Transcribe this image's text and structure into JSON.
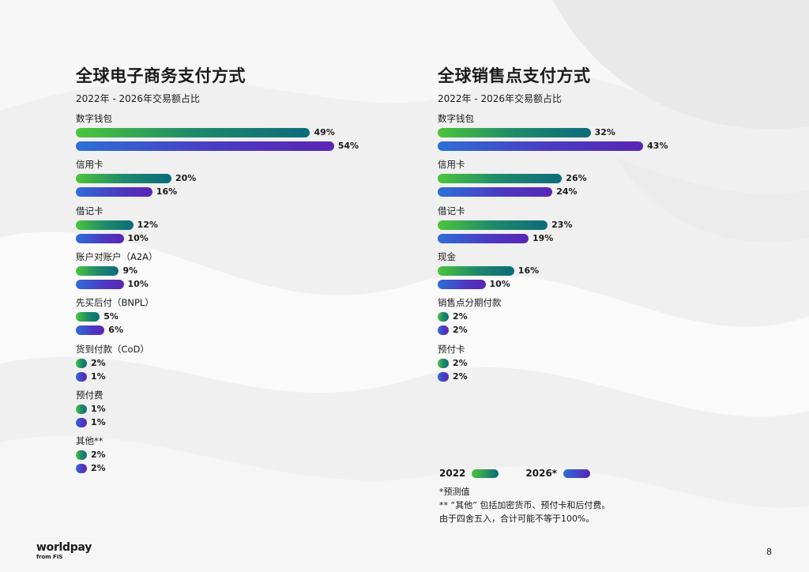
{
  "colors": {
    "bar_2022_start": "#4cc43c",
    "bar_2022_end": "#0c6b7b",
    "bar_2026_start": "#2d6fd6",
    "bar_2026_end": "#5a25b4"
  },
  "chart_data": [
    {
      "type": "bar",
      "orientation": "horizontal",
      "title": "全球电子商务支付方式",
      "subtitle": "2022年 - 2026年交易额占比",
      "categories": [
        "数字钱包",
        "信用卡",
        "借记卡",
        "账户对账户（A2A）",
        "先买后付（BNPL）",
        "货到付款（CoD）",
        "预付费",
        "其他**"
      ],
      "series": [
        {
          "name": "2022",
          "values": [
            49,
            20,
            12,
            9,
            5,
            2,
            1,
            2
          ],
          "labels": [
            "49%",
            "20%",
            "12%",
            "9%",
            "5%",
            "2%",
            "1%",
            "2%"
          ]
        },
        {
          "name": "2026*",
          "values": [
            54,
            16,
            10,
            10,
            6,
            1,
            1,
            2
          ],
          "labels": [
            "54%",
            "16%",
            "10%",
            "10%",
            "6%",
            "1%",
            "1%",
            "2%"
          ]
        }
      ]
    },
    {
      "type": "bar",
      "orientation": "horizontal",
      "title": "全球销售点支付方式",
      "subtitle": "2022年 - 2026年交易额占比",
      "categories": [
        "数字钱包",
        "信用卡",
        "借记卡",
        "现金",
        "销售点分期付款",
        "预付卡"
      ],
      "series": [
        {
          "name": "2022",
          "values": [
            32,
            26,
            23,
            16,
            2,
            2
          ],
          "labels": [
            "32%",
            "26%",
            "23%",
            "16%",
            "2%",
            "2%"
          ]
        },
        {
          "name": "2026*",
          "values": [
            43,
            24,
            19,
            10,
            2,
            2
          ],
          "labels": [
            "43%",
            "24%",
            "19%",
            "10%",
            "2%",
            "2%"
          ]
        }
      ]
    }
  ],
  "legend": {
    "item_2022": "2022",
    "item_2026": "2026*"
  },
  "notes": {
    "line1": "*预测值",
    "line2": "** “其他” 包括加密货币、预付卡和后付费。",
    "line3": "由于四舍五入，合计可能不等于100%。"
  },
  "logo": {
    "main": "worldpay",
    "sub": "from FIS"
  },
  "page_number": "8"
}
